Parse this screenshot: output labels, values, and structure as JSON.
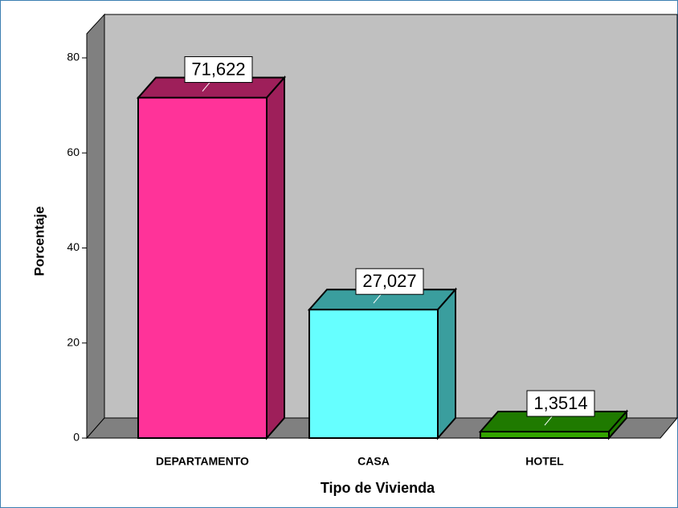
{
  "chart_data": {
    "type": "bar3d",
    "xlabel": "Tipo de Vivienda",
    "ylabel": "Porcentaje",
    "categories": [
      "DEPARTAMENTO",
      "CASA",
      "HOTEL"
    ],
    "values": [
      71.622,
      27.027,
      1.3514
    ],
    "value_labels": [
      "71,622",
      "27,027",
      "1,3514"
    ],
    "colors": [
      "#ff3399",
      "#66ffff",
      "#33a300"
    ],
    "side_colors": [
      "#9e1f5a",
      "#3a9e9e",
      "#1f7a00"
    ],
    "ylim": [
      0,
      80
    ],
    "yticks": [
      0,
      20,
      40,
      60,
      80
    ]
  }
}
